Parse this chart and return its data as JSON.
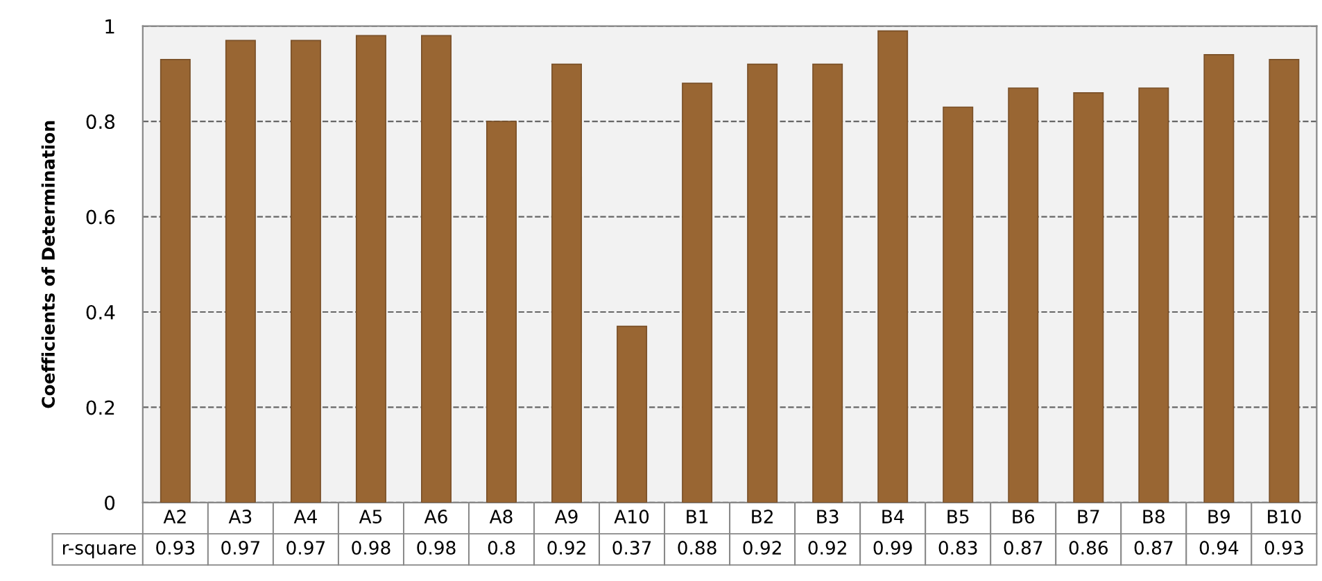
{
  "chart_data": {
    "type": "bar",
    "ylabel": "Coefficients of Determination",
    "categories": [
      "A2",
      "A3",
      "A4",
      "A5",
      "A6",
      "A8",
      "A9",
      "A10",
      "B1",
      "B2",
      "B3",
      "B4",
      "B5",
      "B6",
      "B7",
      "B8",
      "B9",
      "B10"
    ],
    "series": [
      {
        "name": "r-square",
        "color": "#996633",
        "values": [
          0.93,
          0.97,
          0.97,
          0.98,
          0.98,
          0.8,
          0.92,
          0.37,
          0.88,
          0.92,
          0.92,
          0.99,
          0.83,
          0.87,
          0.86,
          0.87,
          0.94,
          0.93
        ]
      }
    ],
    "ylim": [
      0,
      1
    ],
    "yticks": [
      0,
      0.2,
      0.4,
      0.6,
      0.8,
      1
    ],
    "grid": "y",
    "data_labels": true
  }
}
